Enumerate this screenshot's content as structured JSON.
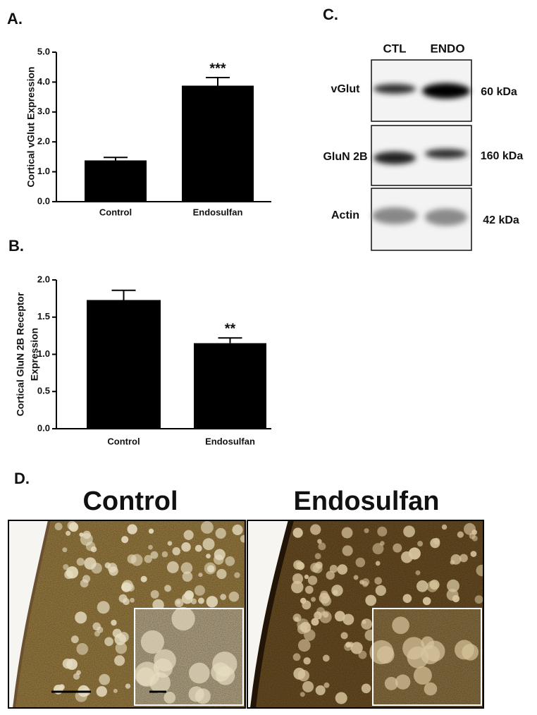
{
  "chart_data": [
    {
      "type": "bar",
      "panel": "A.",
      "y_label": [
        "Cortical vGlut Expression"
      ],
      "categories": [
        "Control",
        "Endosulfan"
      ],
      "values": [
        1.38,
        3.88
      ],
      "errors": [
        0.1,
        0.27
      ],
      "annotations": [
        null,
        "***"
      ],
      "color": "#000000",
      "ylim": [
        0,
        5
      ],
      "yticks": [
        {
          "value": 0,
          "label": "0.0"
        },
        {
          "value": 1,
          "label": "1.0"
        },
        {
          "value": 2,
          "label": "2.0"
        },
        {
          "value": 3,
          "label": "3.0"
        },
        {
          "value": 4,
          "label": "4.0"
        },
        {
          "value": 5,
          "label": "5.0"
        }
      ]
    },
    {
      "type": "bar",
      "panel": "B.",
      "y_label": [
        "Cortical GluN 2B Receptor",
        "Expression"
      ],
      "categories": [
        "Control",
        "Endosulfan"
      ],
      "values": [
        1.73,
        1.15
      ],
      "errors": [
        0.13,
        0.07
      ],
      "annotations": [
        null,
        "**"
      ],
      "color": "#000000",
      "ylim": [
        0,
        2
      ],
      "yticks": [
        {
          "value": 0,
          "label": "0.0"
        },
        0.5,
        {
          "value": 1,
          "label": "1.0"
        },
        1.5,
        {
          "value": 2,
          "label": "2.0"
        }
      ]
    }
  ],
  "blot": {
    "panel": "C.",
    "lanes": [
      "CTL",
      "ENDO"
    ],
    "rows": [
      {
        "label": "vGlut",
        "size": "60 kDa"
      },
      {
        "label": "GluN 2B",
        "size": "160 kDa"
      },
      {
        "label": "Actin",
        "size": "42 kDa"
      }
    ]
  },
  "micrographs": {
    "panel": "D.",
    "titles": [
      "Control",
      "Endosulfan"
    ]
  }
}
